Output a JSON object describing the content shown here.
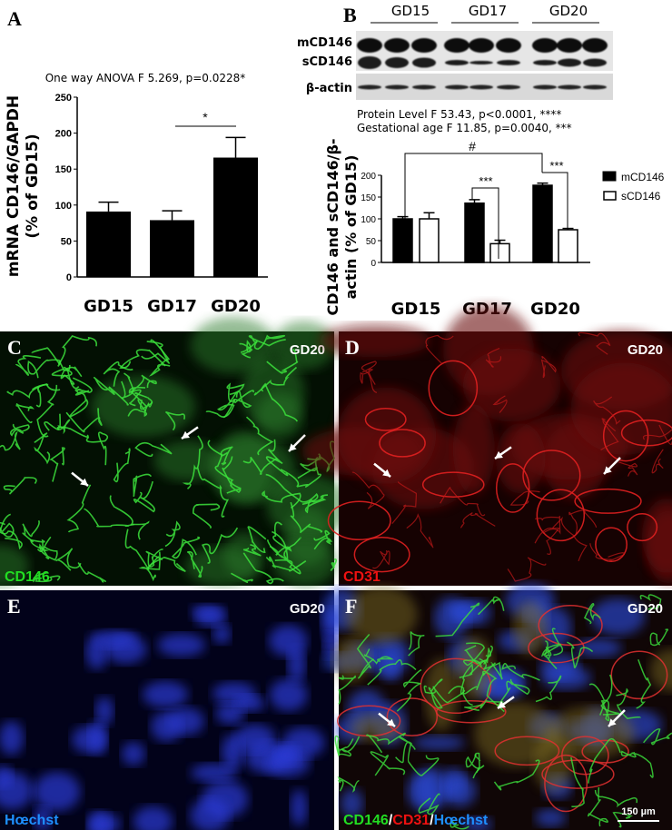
{
  "panels": {
    "A": {
      "letter": "A"
    },
    "B": {
      "letter": "B"
    },
    "C": {
      "letter": "C",
      "tag": "GD20",
      "stain": "CD146",
      "stain_color": "#22dd22"
    },
    "D": {
      "letter": "D",
      "tag": "GD20",
      "stain": "CD31",
      "stain_color": "#ee1111"
    },
    "E": {
      "letter": "E",
      "tag": "GD20",
      "stain": "Hœchst",
      "stain_color": "#1e90ff"
    },
    "F": {
      "letter": "F",
      "tag": "GD20",
      "stain1": "CD146",
      "sep1": "/",
      "stain2": "CD31",
      "sep2": "/",
      "stain3": "Hœchst",
      "scale_bar": "150 µm"
    }
  },
  "blot": {
    "groups": [
      "GD15",
      "GD17",
      "GD20"
    ],
    "rows": [
      "mCD146",
      "sCD146",
      "β-actin"
    ]
  },
  "chart_data": [
    {
      "type": "bar",
      "title": "One way ANOVA F 5.269, p=0.0228*",
      "ylabel": "mRNA CD146/GAPDH (% of GD15)",
      "ylabel_line1": "mRNA CD146/GAPDH",
      "ylabel_line2": "(% of GD15)",
      "categories": [
        "GD15",
        "GD17",
        "GD20"
      ],
      "values": [
        91,
        79,
        166
      ],
      "error_upper": [
        104,
        92,
        194
      ],
      "ylim": [
        0,
        250
      ],
      "yticks": [
        "0",
        "50",
        "100",
        "150",
        "200",
        "250"
      ],
      "annotations": [
        {
          "text": "*",
          "between": [
            "GD17",
            "GD20"
          ]
        }
      ]
    },
    {
      "type": "bar",
      "title_line1": "Protein Level F 53.43, p<0.0001, ****",
      "title_line2": "Gestational age F 11.85, p=0.0040, ***",
      "ylabel_line1": "CD146 and sCD146/β-",
      "ylabel_line2": "actin (% of GD15)",
      "categories": [
        "GD15",
        "GD17",
        "GD20"
      ],
      "series": [
        {
          "name": "mCD146",
          "values": [
            100,
            136,
            177
          ],
          "error_upper": [
            105,
            144,
            182
          ],
          "color": "#000000"
        },
        {
          "name": "sCD146",
          "values": [
            100,
            43,
            75
          ],
          "error_upper": [
            114,
            51,
            78
          ],
          "color": "#ffffff"
        }
      ],
      "ylim": [
        0,
        200
      ],
      "yticks": [
        "0",
        "50",
        "100",
        "150",
        "200"
      ],
      "legend": "right",
      "annotations": [
        {
          "text": "#",
          "between": [
            "GD15 mCD146",
            "GD20 mCD146"
          ]
        },
        {
          "text": "***",
          "between": [
            "GD17 mCD146",
            "GD17 sCD146"
          ]
        },
        {
          "text": "***",
          "between": [
            "GD20 mCD146",
            "GD20 sCD146"
          ]
        }
      ]
    }
  ]
}
